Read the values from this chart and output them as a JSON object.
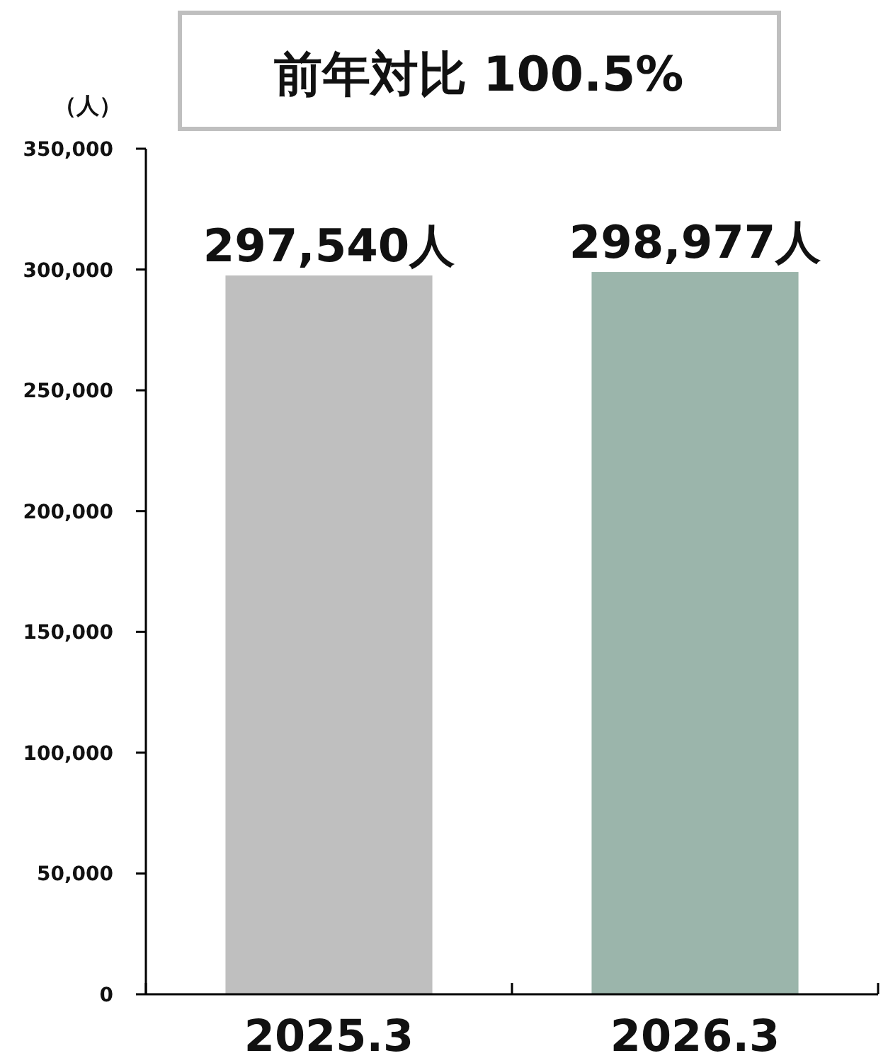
{
  "chart_data": {
    "type": "bar",
    "title": "前年対比 100.5%",
    "ylabel": "（人）",
    "categories": [
      "2025.3",
      "2026.3"
    ],
    "values": [
      297540,
      298977
    ],
    "colors": [
      "#bfbfbf",
      "#9bb5ab"
    ],
    "value_labels": [
      "297,540人",
      "298,977人"
    ],
    "ylim": [
      0,
      350000
    ],
    "yticks": [
      {
        "value": 0,
        "label": "0"
      },
      {
        "value": 50000,
        "label": "50,000"
      },
      {
        "value": 100000,
        "label": "100,000"
      },
      {
        "value": 150000,
        "label": "150,000"
      },
      {
        "value": 200000,
        "label": "200,000"
      },
      {
        "value": 250000,
        "label": "250,000"
      },
      {
        "value": 300000,
        "label": "300,000"
      },
      {
        "value": 350000,
        "label": "350,000"
      }
    ]
  }
}
